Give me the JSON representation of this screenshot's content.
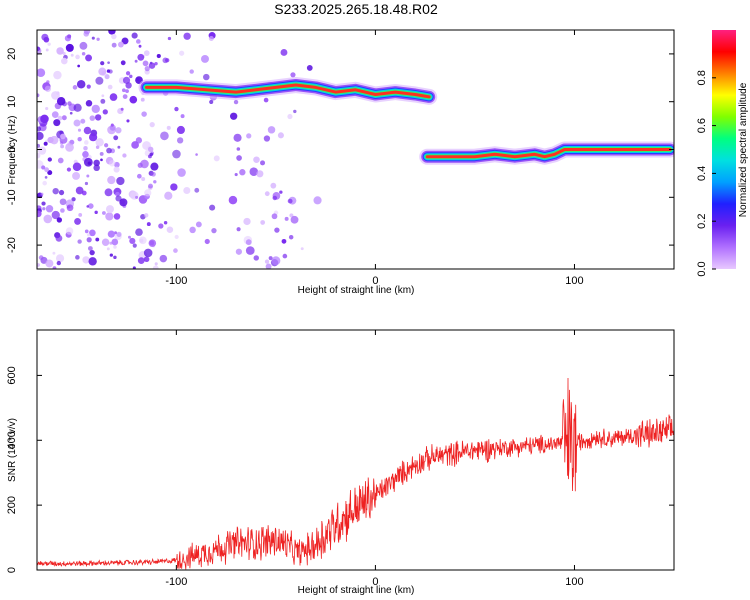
{
  "title": "S233.2025.265.18.48.R02",
  "colors": {
    "snr_line": "#ee2222",
    "speck": "#7a2cf0",
    "frame": "#000000"
  },
  "colormap": [
    "#e8c8ff",
    "#b070ff",
    "#6a20f0",
    "#2020ff",
    "#00a0ff",
    "#00e0e0",
    "#00ff80",
    "#80ff00",
    "#ffff00",
    "#ff8000",
    "#ff0000",
    "#ff2080"
  ],
  "chart_data": [
    {
      "type": "heatmap",
      "title": "S233.2025.265.18.48.R02",
      "xlabel": "Height of straight line (km)",
      "ylabel": "Frequency (Hz)",
      "xlim": [
        -170,
        150
      ],
      "ylim": [
        -25,
        25
      ],
      "xticks": [
        -100,
        0,
        100
      ],
      "yticks": [
        -20,
        -10,
        0,
        10,
        20
      ],
      "colorbar": {
        "label": "Normalized spectral amplitude",
        "range": [
          0,
          1
        ],
        "ticks": [
          0.0,
          0.2,
          0.4,
          0.6,
          0.8
        ]
      },
      "ridges": [
        {
          "x": [
            -115,
            -100,
            -85,
            -70,
            -60,
            -50,
            -40,
            -30,
            -20,
            -10,
            0,
            10,
            20,
            27
          ],
          "y": [
            13,
            13,
            12.5,
            12,
            12.5,
            13,
            13.5,
            13,
            12,
            12.5,
            11.5,
            12,
            11.5,
            11
          ]
        },
        {
          "x": [
            26,
            40,
            50,
            60,
            70,
            80,
            85,
            90,
            95,
            100,
            110,
            120,
            130,
            140,
            148
          ],
          "y": [
            -1.5,
            -1.5,
            -1.5,
            -1,
            -1.5,
            -1,
            -1.5,
            -1,
            0,
            0,
            0,
            0,
            0,
            0,
            0
          ]
        }
      ]
    },
    {
      "type": "line",
      "xlabel": "Height of straight line (km)",
      "ylabel": "SNR (10 * v/v)",
      "xlim": [
        -170,
        150
      ],
      "ylim": [
        0,
        740
      ],
      "xticks": [
        -100,
        0,
        100
      ],
      "yticks": [
        0,
        200,
        400,
        600
      ],
      "series": [
        {
          "x": [
            -170,
            -150,
            -130,
            -110,
            -100,
            -90,
            -80,
            -70,
            -60,
            -50,
            -45,
            -40,
            -35,
            -30,
            -25,
            -20,
            -15,
            -10,
            -5,
            0,
            5,
            10,
            15,
            20,
            25,
            30,
            35,
            40,
            50,
            60,
            70,
            80,
            90,
            95,
            98,
            100,
            102,
            105,
            110,
            120,
            130,
            140,
            150
          ],
          "values": [
            20,
            20,
            22,
            25,
            30,
            45,
            65,
            80,
            85,
            90,
            80,
            55,
            60,
            80,
            110,
            140,
            165,
            190,
            210,
            230,
            255,
            280,
            305,
            325,
            340,
            350,
            355,
            360,
            370,
            375,
            380,
            385,
            390,
            395,
            390,
            380,
            395,
            400,
            410,
            405,
            415,
            420,
            430
          ]
        }
      ]
    }
  ]
}
